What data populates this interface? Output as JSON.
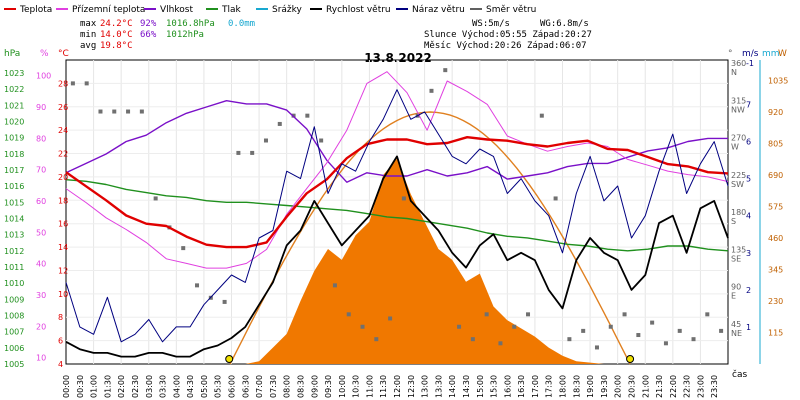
{
  "chart_data": {
    "type": "line",
    "title": "13.8.2022",
    "legend": [
      {
        "label": "Teplota",
        "color": "#e00000"
      },
      {
        "label": "Přízemní teplota",
        "color": "#e040e0"
      },
      {
        "label": "Vlhkost",
        "color": "#7a10c8"
      },
      {
        "label": "Tlak",
        "color": "#20901e"
      },
      {
        "label": "Srážky",
        "color": "#18a8d0"
      },
      {
        "label": "Rychlost větru",
        "color": "#000000"
      },
      {
        "label": "Náraz větru",
        "color": "#000080"
      },
      {
        "label": "Směr větru",
        "color": "#606060"
      }
    ],
    "stats": {
      "max_label": "max",
      "min_label": "min",
      "avg_label": "avg",
      "max_temp": "24.2°C",
      "max_hum": "92%",
      "max_press": "1016.8hPa",
      "max_rain": "0.0mm",
      "min_temp": "14.0°C",
      "min_hum": "66%",
      "min_press": "1012hPa",
      "avg_temp": "19.8°C",
      "ws": "WS:5m/s",
      "wg": "WG:6.8m/s",
      "sun": "Slunce Východ:05:55  Západ:20:27",
      "moon": "Měsíc  Východ:20:26  Západ:06:07"
    },
    "axes": {
      "hpa_label": "hPa",
      "pct_label": "%",
      "degc_label": "°C",
      "deg_label": "°",
      "ms_label": "m/s",
      "mm_label": "mm",
      "wm2_label": "W",
      "time_label": "čas",
      "hpa_ticks": [
        "1023",
        "1022",
        "1021",
        "1020",
        "1019",
        "1018",
        "1017",
        "1016",
        "1015",
        "1014",
        "1013",
        "1012",
        "1011",
        "1010",
        "1009",
        "1008",
        "1007",
        "1006",
        "1005"
      ],
      "pct_ticks": [
        "100",
        "90",
        "80",
        "70",
        "60",
        "50",
        "40",
        "30",
        "20",
        "10"
      ],
      "degc_ticks": [
        "28",
        "26",
        "24",
        "22",
        "20",
        "18",
        "16",
        "14",
        "12",
        "10",
        "8",
        "6",
        "4"
      ],
      "dir_ticks": [
        {
          "deg": "360",
          "dir": "N"
        },
        {
          "deg": "315",
          "dir": "NW"
        },
        {
          "deg": "270",
          "dir": "W"
        },
        {
          "deg": "225",
          "dir": "SW"
        },
        {
          "deg": "180",
          "dir": "S"
        },
        {
          "deg": "135",
          "dir": "SE"
        },
        {
          "deg": "90",
          "dir": "E"
        },
        {
          "deg": "45",
          "dir": "NE"
        }
      ],
      "ms_ticks": [
        "7",
        "6",
        "5",
        "4",
        "3",
        "2",
        "1"
      ],
      "ms_top": "-1",
      "wm2_ticks": [
        "1035",
        "920",
        "805",
        "690",
        "575",
        "460",
        "345",
        "230",
        "115"
      ],
      "x_ticks": [
        "00:00",
        "00:30",
        "01:00",
        "01:30",
        "02:00",
        "02:30",
        "03:00",
        "03:30",
        "04:00",
        "04:30",
        "05:00",
        "05:30",
        "06:00",
        "06:30",
        "07:00",
        "07:30",
        "08:00",
        "08:30",
        "09:00",
        "09:30",
        "10:00",
        "10:30",
        "11:00",
        "11:30",
        "12:00",
        "12:30",
        "13:00",
        "13:30",
        "14:00",
        "14:30",
        "15:00",
        "15:30",
        "16:00",
        "16:30",
        "17:00",
        "17:30",
        "18:00",
        "18:30",
        "19:00",
        "19:30",
        "20:00",
        "20:30",
        "21:00",
        "21:30",
        "22:00",
        "22:30",
        "23:00",
        "23:30"
      ]
    },
    "x_hours": [
      0,
      1,
      2,
      3,
      4,
      5,
      6,
      7,
      8,
      9,
      10,
      11,
      12,
      13,
      14,
      15,
      16,
      17,
      18,
      19,
      20,
      21,
      22,
      23,
      24
    ],
    "temperature_c": [
      20.4,
      19.2,
      18.0,
      16.7,
      16.0,
      15.8,
      14.9,
      14.2,
      14.0,
      14.0,
      14.4,
      16.6,
      18.6,
      19.8,
      21.6,
      22.8,
      23.2,
      23.2,
      22.8,
      22.9,
      23.4,
      23.2,
      23.1,
      22.8,
      22.6,
      22.9,
      23.1,
      22.4,
      22.3,
      21.7,
      21.1,
      20.9,
      20.4,
      20.3
    ],
    "ground_temp_c": [
      19.0,
      17.8,
      16.5,
      15.5,
      14.4,
      13.0,
      12.6,
      12.2,
      12.2,
      12.6,
      13.8,
      16.8,
      19.0,
      21.2,
      24.0,
      28.0,
      29.0,
      27.2,
      24.0,
      28.2,
      27.3,
      26.2,
      23.5,
      22.8,
      22.2,
      22.6,
      22.9,
      22.6,
      21.5,
      21.0,
      20.5,
      20.2,
      20.0,
      19.6
    ],
    "humidity_pct": [
      69,
      72,
      75,
      79,
      81,
      85,
      88,
      90,
      92,
      91,
      91,
      89,
      83,
      73,
      66,
      69,
      68,
      68,
      70,
      68,
      69,
      71,
      67,
      68,
      69,
      71,
      72,
      72,
      74,
      76,
      77,
      79,
      80,
      80
    ],
    "pressure_hpa": [
      1016.4,
      1016.3,
      1016.1,
      1015.8,
      1015.6,
      1015.4,
      1015.3,
      1015.1,
      1015.0,
      1015.0,
      1014.9,
      1014.8,
      1014.7,
      1014.6,
      1014.5,
      1014.3,
      1014.1,
      1014.0,
      1013.8,
      1013.6,
      1013.4,
      1013.1,
      1012.9,
      1012.8,
      1012.6,
      1012.4,
      1012.3,
      1012.1,
      1012.0,
      1012.1,
      1012.3,
      1012.3,
      1012.1,
      1012.0
    ],
    "wind_speed_ms": [
      0.6,
      0.4,
      0.3,
      0.3,
      0.2,
      0.2,
      0.3,
      0.3,
      0.2,
      0.2,
      0.4,
      0.5,
      0.7,
      1.0,
      1.6,
      2.2,
      3.2,
      3.6,
      4.4,
      3.8,
      3.2,
      3.6,
      4.0,
      5.0,
      5.6,
      4.4,
      4.0,
      3.6,
      3.0,
      2.6,
      3.2,
      3.5,
      2.8,
      3.0,
      2.8,
      2.0,
      1.5,
      2.8,
      3.4,
      3.0,
      2.8,
      2.0,
      2.4,
      3.8,
      4.0,
      3.0,
      4.2,
      4.4,
      3.4
    ],
    "wind_gust_ms": [
      2.2,
      1.0,
      0.8,
      1.8,
      0.6,
      0.8,
      1.2,
      0.6,
      1.0,
      1.0,
      1.6,
      2.0,
      2.4,
      2.2,
      3.4,
      3.6,
      5.2,
      5.0,
      6.4,
      4.6,
      5.4,
      5.2,
      6.0,
      6.6,
      7.4,
      6.6,
      6.8,
      6.2,
      5.6,
      5.4,
      5.8,
      5.6,
      4.6,
      5.0,
      4.4,
      4.0,
      3.0,
      4.6,
      5.6,
      4.4,
      4.8,
      3.4,
      4.0,
      5.2,
      6.2,
      4.6,
      5.4,
      6.0,
      4.8
    ],
    "solar_wm2": [
      0,
      0,
      0,
      0,
      0,
      0,
      0,
      0,
      0,
      0,
      0,
      0,
      0,
      0,
      10,
      60,
      110,
      230,
      340,
      420,
      380,
      470,
      520,
      690,
      750,
      620,
      520,
      420,
      380,
      300,
      330,
      210,
      160,
      130,
      100,
      60,
      30,
      10,
      5,
      0,
      0,
      0,
      0,
      0,
      0,
      0,
      0,
      0,
      0
    ],
    "clear_sky_wm2_peak": 920,
    "wind_dir_deg": [
      339,
      339,
      305,
      305,
      305,
      305,
      200,
      165,
      140,
      95,
      80,
      75,
      255,
      255,
      270,
      290,
      300,
      300,
      270,
      95,
      60,
      45,
      30,
      55,
      200,
      300,
      330,
      355,
      45,
      30,
      60,
      25,
      45,
      60,
      300,
      200,
      30,
      40,
      20,
      45,
      60,
      35,
      50,
      25,
      40,
      30,
      60,
      40
    ],
    "sunrise_marker": "05:55",
    "sunset_marker": "20:27",
    "y_ranges": {
      "temp_c": [
        4,
        30
      ],
      "humidity_pct": [
        8,
        105
      ],
      "pressure_hpa": [
        1005,
        1023.8
      ],
      "wind_ms": [
        0,
        8.2
      ],
      "solar_wm2": [
        0,
        1110
      ]
    }
  }
}
